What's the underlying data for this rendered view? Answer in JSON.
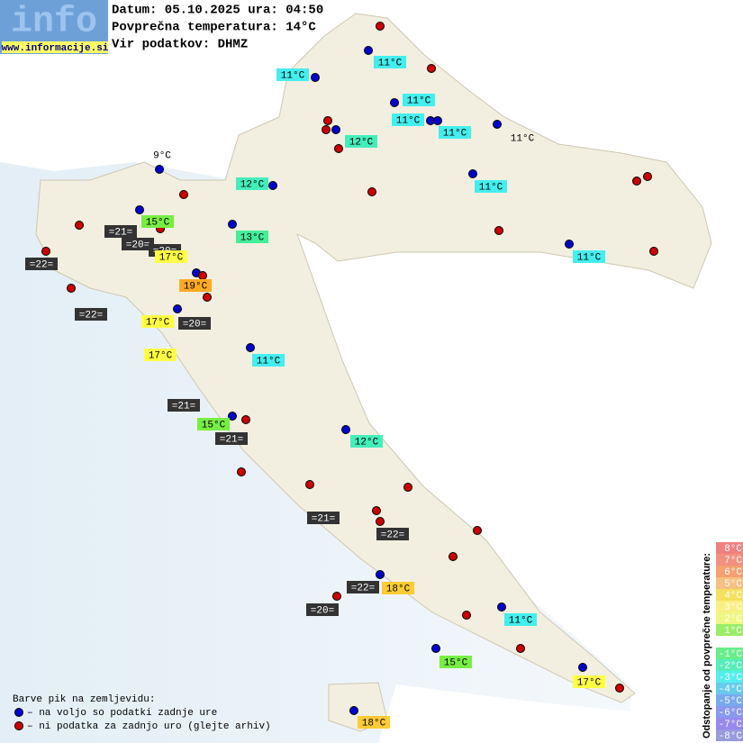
{
  "header": {
    "logo": "info",
    "site": "www.informacije.si",
    "date": "Datum: 05.10.2025 ura: 04:50",
    "average": "Povprečna temperatura: 14°C",
    "source": "Vir podatkov: DHMZ"
  },
  "stations": [
    "11°C",
    "11°C",
    "11°C",
    "11°C",
    "11°C",
    "11°C",
    "12°C",
    "9°C",
    "12°C",
    "11°C",
    "15°C",
    "13°C",
    "=21=",
    "=20=",
    "=20=",
    "17°C",
    "=22=",
    "11°C",
    "19°C",
    "=22=",
    "17°C",
    "=20=",
    "17°C",
    "11°C",
    "=21=",
    "15°C",
    "=21=",
    "12°C",
    "=21=",
    "=22=",
    "=22=",
    "18°C",
    "=20=",
    "11°C",
    "15°C",
    "17°C",
    "18°C"
  ],
  "legend": {
    "title": "Barve pik na zemljevidu:",
    "available": "– na voljo so podatki zadnje ure",
    "missing": "– ni podatka za zadnjo uro (glejte arhiv)"
  },
  "scale": {
    "title": "Odstopanje od povprečne temperature:",
    "labels": [
      "8°C",
      "7°C",
      "6°C",
      "5°C",
      "4°C",
      "3°C",
      "2°C",
      "1°C",
      "-1°C",
      "-2°C",
      "-3°C",
      "-4°C",
      "-5°C",
      "-6°C",
      "-7°C",
      "-8°C"
    ]
  }
}
